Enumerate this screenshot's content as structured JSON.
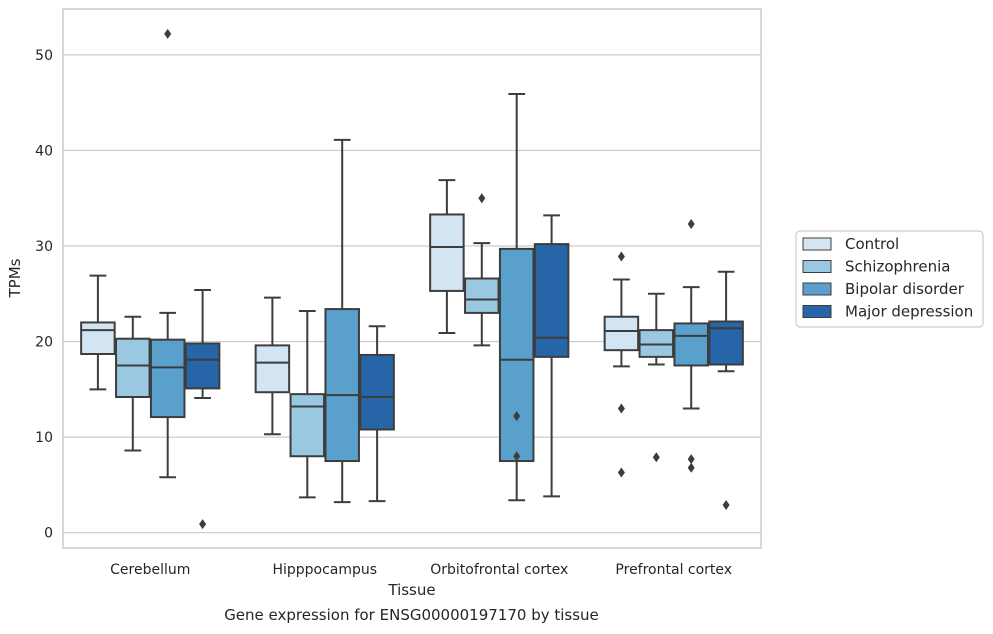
{
  "caption": "Gene expression for ENSG00000197170 by tissue",
  "chart_data": {
    "type": "box",
    "xlabel": "Tissue",
    "ylabel": "TPMs",
    "ylim": [
      -1.6,
      54.8
    ],
    "yticks": [
      0,
      10,
      20,
      30,
      40,
      50
    ],
    "grid": "horizontal",
    "legend_position": "outside-right",
    "categories": [
      "Cerebellum",
      "Hipppocampus",
      "Orbitofrontal cortex",
      "Prefrontal cortex"
    ],
    "series": [
      {
        "name": "Control",
        "color": "#d3e4f3",
        "boxes": [
          {
            "whisker_low": 15.0,
            "q1": 18.7,
            "median": 21.2,
            "q3": 22.0,
            "whisker_high": 26.9,
            "outliers": []
          },
          {
            "whisker_low": 10.3,
            "q1": 14.7,
            "median": 17.8,
            "q3": 19.6,
            "whisker_high": 24.6,
            "outliers": []
          },
          {
            "whisker_low": 20.9,
            "q1": 25.3,
            "median": 29.9,
            "q3": 33.3,
            "whisker_high": 36.9,
            "outliers": []
          },
          {
            "whisker_low": 17.4,
            "q1": 19.1,
            "median": 21.1,
            "q3": 22.6,
            "whisker_high": 26.5,
            "outliers": [
              28.9,
              13.0,
              6.3
            ]
          }
        ]
      },
      {
        "name": "Schizophrenia",
        "color": "#9ac8e0",
        "boxes": [
          {
            "whisker_low": 8.6,
            "q1": 14.2,
            "median": 17.5,
            "q3": 20.3,
            "whisker_high": 22.6,
            "outliers": []
          },
          {
            "whisker_low": 3.7,
            "q1": 8.0,
            "median": 13.2,
            "q3": 14.5,
            "whisker_high": 23.2,
            "outliers": []
          },
          {
            "whisker_low": 19.6,
            "q1": 23.0,
            "median": 24.4,
            "q3": 26.6,
            "whisker_high": 30.3,
            "outliers": [
              35.0
            ]
          },
          {
            "whisker_low": 17.6,
            "q1": 18.4,
            "median": 19.7,
            "q3": 21.2,
            "whisker_high": 25.0,
            "outliers": [
              7.9
            ]
          }
        ]
      },
      {
        "name": "Bipolar disorder",
        "color": "#5aa0cd",
        "boxes": [
          {
            "whisker_low": 5.8,
            "q1": 12.1,
            "median": 17.3,
            "q3": 20.2,
            "whisker_high": 23.0,
            "outliers": [
              52.2
            ]
          },
          {
            "whisker_low": 3.2,
            "q1": 7.5,
            "median": 14.4,
            "q3": 23.4,
            "whisker_high": 41.1,
            "outliers": []
          },
          {
            "whisker_low": 3.4,
            "q1": 7.5,
            "median": 18.1,
            "q3": 29.7,
            "whisker_high": 45.9,
            "outliers": [
              12.2,
              8.0
            ]
          },
          {
            "whisker_low": 13.0,
            "q1": 17.5,
            "median": 20.6,
            "q3": 21.9,
            "whisker_high": 25.7,
            "outliers": [
              32.3,
              7.7,
              6.8
            ]
          }
        ]
      },
      {
        "name": "Major depression",
        "color": "#2565a8",
        "boxes": [
          {
            "whisker_low": 14.1,
            "q1": 15.1,
            "median": 18.1,
            "q3": 19.8,
            "whisker_high": 25.4,
            "outliers": [
              0.9
            ]
          },
          {
            "whisker_low": 3.3,
            "q1": 10.8,
            "median": 14.2,
            "q3": 18.6,
            "whisker_high": 21.6,
            "outliers": []
          },
          {
            "whisker_low": 3.8,
            "q1": 18.4,
            "median": 20.4,
            "q3": 30.2,
            "whisker_high": 33.2,
            "outliers": []
          },
          {
            "whisker_low": 16.9,
            "q1": 17.6,
            "median": 21.4,
            "q3": 22.1,
            "whisker_high": 27.3,
            "outliers": [
              2.9
            ]
          }
        ]
      }
    ]
  }
}
